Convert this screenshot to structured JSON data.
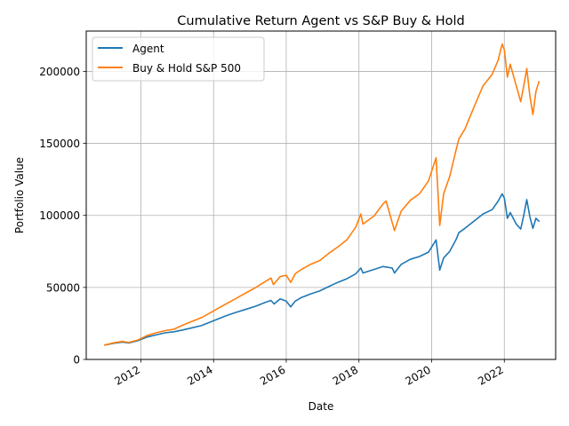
{
  "chart_data": {
    "type": "line",
    "title": "Cumulative Return Agent vs S&P Buy & Hold",
    "xlabel": "Date",
    "ylabel": "Portfolio Value",
    "xlim": [
      "2010-07-01",
      "2023-06-01"
    ],
    "ylim": [
      0,
      228000
    ],
    "grid": true,
    "legend_position": "top-left",
    "x_ticks": [
      {
        "date": "2012-01-01",
        "label": "2012"
      },
      {
        "date": "2014-01-01",
        "label": "2014"
      },
      {
        "date": "2016-01-01",
        "label": "2016"
      },
      {
        "date": "2018-01-01",
        "label": "2018"
      },
      {
        "date": "2020-01-01",
        "label": "2020"
      },
      {
        "date": "2022-01-01",
        "label": "2022"
      }
    ],
    "y_ticks": [
      {
        "value": 0,
        "label": "0"
      },
      {
        "value": 50000,
        "label": "50000"
      },
      {
        "value": 100000,
        "label": "100000"
      },
      {
        "value": 150000,
        "label": "150000"
      },
      {
        "value": 200000,
        "label": "200000"
      }
    ],
    "series": [
      {
        "name": "Agent",
        "color": "#1f77b4",
        "points": [
          [
            "2011-01-03",
            10000
          ],
          [
            "2011-04-01",
            11200
          ],
          [
            "2011-07-01",
            12000
          ],
          [
            "2011-09-01",
            11400
          ],
          [
            "2011-12-01",
            13000
          ],
          [
            "2012-03-01",
            15500
          ],
          [
            "2012-06-01",
            17000
          ],
          [
            "2012-09-01",
            18500
          ],
          [
            "2012-12-01",
            19200
          ],
          [
            "2013-03-01",
            20500
          ],
          [
            "2013-06-01",
            22000
          ],
          [
            "2013-09-01",
            23500
          ],
          [
            "2013-12-01",
            26000
          ],
          [
            "2014-03-01",
            28500
          ],
          [
            "2014-06-01",
            31000
          ],
          [
            "2014-09-01",
            33000
          ],
          [
            "2014-12-01",
            35000
          ],
          [
            "2015-03-01",
            37000
          ],
          [
            "2015-06-01",
            39500
          ],
          [
            "2015-08-01",
            41000
          ],
          [
            "2015-09-01",
            38500
          ],
          [
            "2015-11-01",
            42000
          ],
          [
            "2016-01-01",
            40500
          ],
          [
            "2016-02-15",
            36500
          ],
          [
            "2016-04-01",
            40500
          ],
          [
            "2016-06-01",
            43000
          ],
          [
            "2016-09-01",
            45500
          ],
          [
            "2016-12-01",
            47500
          ],
          [
            "2017-03-01",
            50500
          ],
          [
            "2017-06-01",
            53500
          ],
          [
            "2017-09-01",
            56000
          ],
          [
            "2017-12-01",
            59500
          ],
          [
            "2018-01-20",
            63500
          ],
          [
            "2018-02-10",
            60000
          ],
          [
            "2018-06-01",
            62500
          ],
          [
            "2018-09-01",
            64500
          ],
          [
            "2018-12-01",
            63500
          ],
          [
            "2018-12-24",
            60000
          ],
          [
            "2019-03-01",
            66000
          ],
          [
            "2019-06-01",
            69500
          ],
          [
            "2019-09-01",
            71500
          ],
          [
            "2019-12-01",
            74500
          ],
          [
            "2020-02-15",
            83000
          ],
          [
            "2020-03-23",
            62000
          ],
          [
            "2020-05-01",
            70500
          ],
          [
            "2020-07-01",
            75000
          ],
          [
            "2020-09-01",
            83000
          ],
          [
            "2020-10-01",
            88000
          ],
          [
            "2020-12-01",
            91000
          ],
          [
            "2021-03-01",
            96000
          ],
          [
            "2021-06-01",
            101000
          ],
          [
            "2021-09-01",
            104000
          ],
          [
            "2021-11-01",
            110000
          ],
          [
            "2021-12-10",
            115000
          ],
          [
            "2022-01-01",
            112000
          ],
          [
            "2022-02-01",
            98000
          ],
          [
            "2022-03-01",
            102000
          ],
          [
            "2022-05-01",
            94000
          ],
          [
            "2022-06-15",
            90500
          ],
          [
            "2022-07-15",
            100000
          ],
          [
            "2022-08-15",
            111000
          ],
          [
            "2022-09-15",
            99000
          ],
          [
            "2022-10-15",
            91000
          ],
          [
            "2022-11-15",
            98000
          ],
          [
            "2022-12-15",
            96000
          ]
        ]
      },
      {
        "name": "Buy & Hold S&P 500",
        "color": "#ff7f0e",
        "points": [
          [
            "2011-01-03",
            10000
          ],
          [
            "2011-04-01",
            11500
          ],
          [
            "2011-07-01",
            12500
          ],
          [
            "2011-09-01",
            11800
          ],
          [
            "2011-12-01",
            13500
          ],
          [
            "2012-03-01",
            16500
          ],
          [
            "2012-06-01",
            18500
          ],
          [
            "2012-09-01",
            20000
          ],
          [
            "2012-12-01",
            21000
          ],
          [
            "2013-03-01",
            24000
          ],
          [
            "2013-06-01",
            26500
          ],
          [
            "2013-09-01",
            29000
          ],
          [
            "2013-12-01",
            32500
          ],
          [
            "2014-03-01",
            36000
          ],
          [
            "2014-06-01",
            39500
          ],
          [
            "2014-09-01",
            43000
          ],
          [
            "2014-12-01",
            46500
          ],
          [
            "2015-03-01",
            50000
          ],
          [
            "2015-06-01",
            54000
          ],
          [
            "2015-08-01",
            56500
          ],
          [
            "2015-08-25",
            52000
          ],
          [
            "2015-11-01",
            57500
          ],
          [
            "2016-01-01",
            58500
          ],
          [
            "2016-02-15",
            53500
          ],
          [
            "2016-04-01",
            59500
          ],
          [
            "2016-06-01",
            62500
          ],
          [
            "2016-09-01",
            66000
          ],
          [
            "2016-12-01",
            68500
          ],
          [
            "2017-03-01",
            73500
          ],
          [
            "2017-06-01",
            78000
          ],
          [
            "2017-09-01",
            83000
          ],
          [
            "2017-12-01",
            92000
          ],
          [
            "2018-01-20",
            101000
          ],
          [
            "2018-02-10",
            94000
          ],
          [
            "2018-06-01",
            99500
          ],
          [
            "2018-09-01",
            108000
          ],
          [
            "2018-10-01",
            110000
          ],
          [
            "2018-12-24",
            89500
          ],
          [
            "2019-03-01",
            103000
          ],
          [
            "2019-06-01",
            110500
          ],
          [
            "2019-09-01",
            115000
          ],
          [
            "2019-12-01",
            124000
          ],
          [
            "2020-02-15",
            140000
          ],
          [
            "2020-03-23",
            93000
          ],
          [
            "2020-05-01",
            115000
          ],
          [
            "2020-07-01",
            127000
          ],
          [
            "2020-09-01",
            145000
          ],
          [
            "2020-10-01",
            153000
          ],
          [
            "2020-12-01",
            160000
          ],
          [
            "2021-03-01",
            175000
          ],
          [
            "2021-06-01",
            190000
          ],
          [
            "2021-09-01",
            198000
          ],
          [
            "2021-11-01",
            208000
          ],
          [
            "2021-12-10",
            219000
          ],
          [
            "2022-01-01",
            215000
          ],
          [
            "2022-02-01",
            196000
          ],
          [
            "2022-03-01",
            205000
          ],
          [
            "2022-05-01",
            190000
          ],
          [
            "2022-06-15",
            179000
          ],
          [
            "2022-07-15",
            190000
          ],
          [
            "2022-08-15",
            202000
          ],
          [
            "2022-09-15",
            183000
          ],
          [
            "2022-10-15",
            170000
          ],
          [
            "2022-11-15",
            186000
          ],
          [
            "2022-12-15",
            193000
          ]
        ]
      }
    ]
  }
}
